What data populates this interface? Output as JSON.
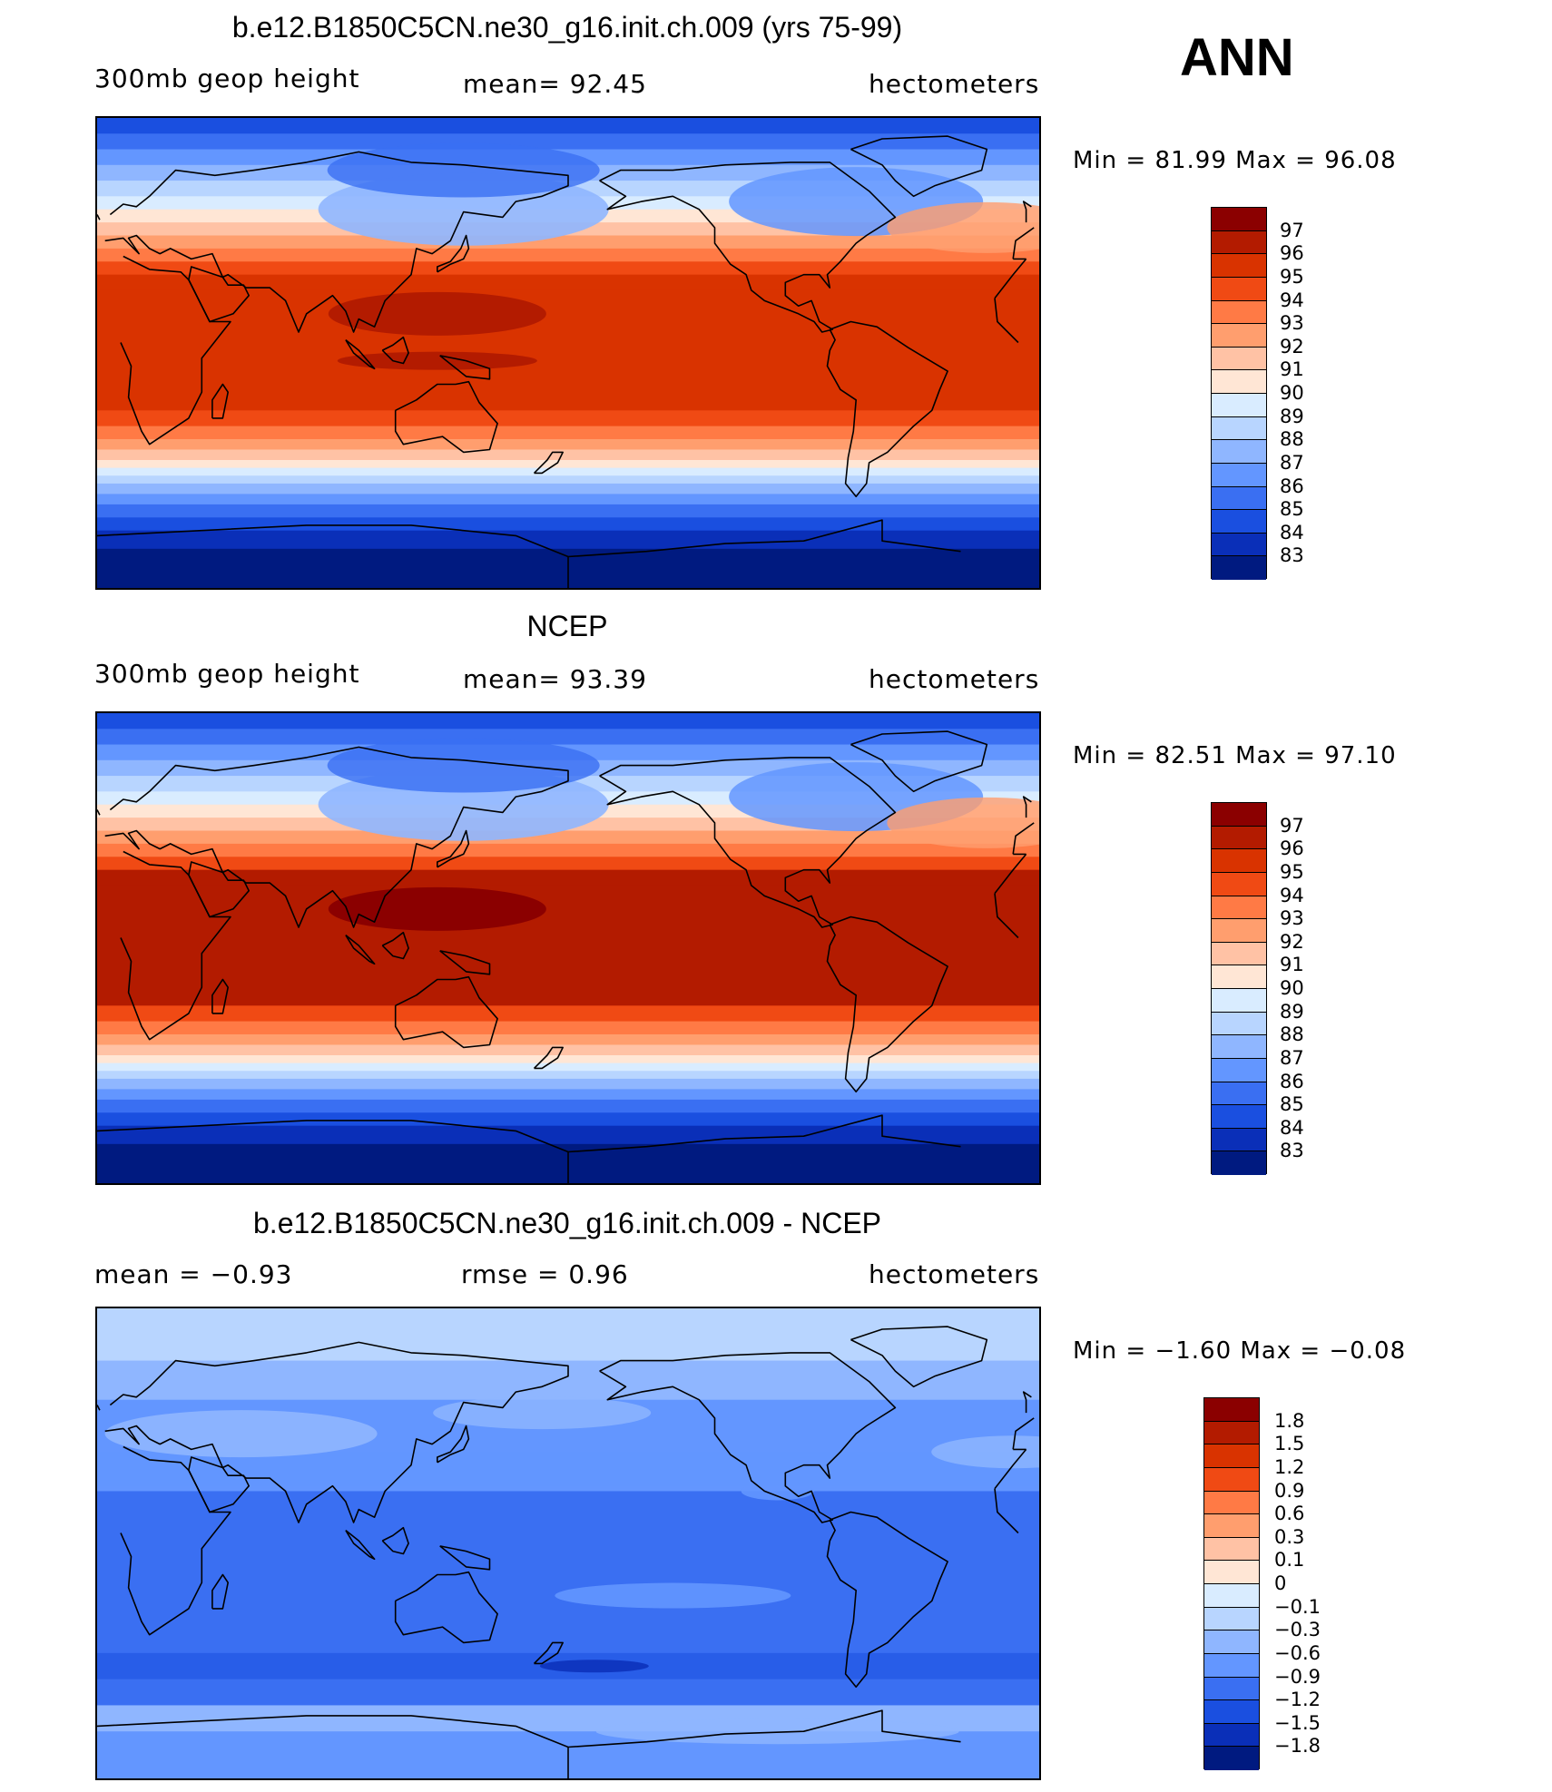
{
  "season_label": "ANN",
  "panels": [
    {
      "title": "b.e12.B1850C5CN.ne30_g16.init.ch.009 (yrs 75-99)",
      "left_label": "300mb  geop  height",
      "mid_label": "mean=   92.45",
      "right_label": "hectometers",
      "minmax": "Min  =    81.99  Max  =    96.08",
      "scale": "abs"
    },
    {
      "title": "NCEP",
      "left_label": "300mb  geop  height",
      "mid_label": "mean=   93.39",
      "right_label": "hectometers",
      "minmax": "Min  =    82.51  Max  =    97.10",
      "scale": "abs"
    },
    {
      "title": "b.e12.B1850C5CN.ne30_g16.init.ch.009 - NCEP",
      "left_label": "mean  =    −0.93",
      "mid_label": "rmse  =     0.96",
      "right_label": "hectometers",
      "minmax": "Min  =   −1.60  Max  =   −0.08",
      "scale": "diff"
    }
  ],
  "colorbars": {
    "abs_levels": [
      "97",
      "96",
      "95",
      "94",
      "93",
      "92",
      "91",
      "90",
      "89",
      "88",
      "87",
      "86",
      "85",
      "84",
      "83"
    ],
    "diff_levels": [
      "1.8",
      "1.5",
      "1.2",
      "0.9",
      "0.6",
      "0.3",
      "0.1",
      "0",
      "−0.1",
      "−0.3",
      "−0.6",
      "−0.9",
      "−1.2",
      "−1.5",
      "−1.8"
    ],
    "colors": [
      "#8b0000",
      "#b31b00",
      "#d93300",
      "#f04a14",
      "#ff7a45",
      "#ff9e6e",
      "#ffc2a5",
      "#ffe6d5",
      "#d9ecff",
      "#b8d5ff",
      "#8fb6ff",
      "#6396ff",
      "#3a6ff2",
      "#1a4fe0",
      "#0a2fb8",
      "#001a80"
    ]
  }
}
